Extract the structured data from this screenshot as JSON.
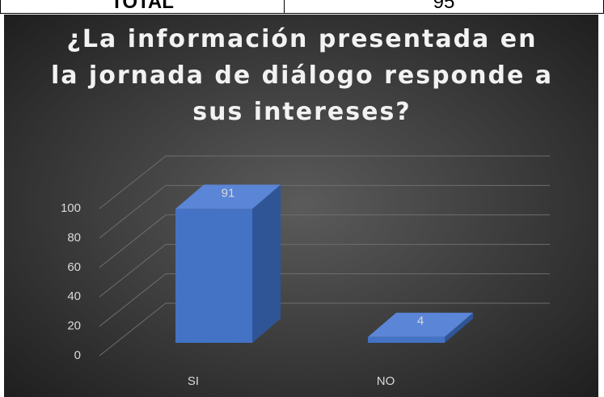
{
  "table": {
    "label": "TOTAL",
    "value": "95"
  },
  "chart_data": {
    "type": "bar3d",
    "title": "¿La información presentada en la jornada de diálogo responde a sus intereses?",
    "categories": [
      "SI",
      "NO"
    ],
    "values": [
      91,
      4
    ],
    "color": "#4472c4",
    "ylim": [
      0,
      100
    ],
    "yticks": [
      0,
      20,
      40,
      60,
      80,
      100
    ],
    "grid": true
  }
}
